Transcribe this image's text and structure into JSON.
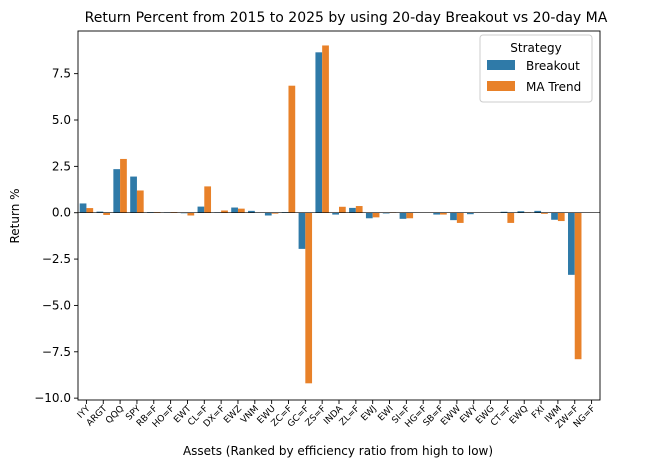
{
  "chart_data": {
    "type": "bar",
    "title": "Return Percent from 2015 to 2025 by using 20-day Breakout vs 20-day MA",
    "xlabel": "Assets (Ranked by efficiency ratio from high to low)",
    "ylabel": "Return %",
    "ylim": [
      -10.1,
      9.8
    ],
    "yticks": [
      -10.0,
      -7.5,
      -5.0,
      -2.5,
      0.0,
      2.5,
      5.0,
      7.5
    ],
    "ytick_labels": [
      "−10.0",
      "−7.5",
      "−5.0",
      "−2.5",
      "0.0",
      "2.5",
      "5.0",
      "7.5"
    ],
    "grid": false,
    "legend": {
      "title": "Strategy",
      "position": "top-right"
    },
    "categories": [
      "IYY",
      "ARGT",
      "QQQ",
      "SPY",
      "RB=F",
      "HO=F",
      "EWT",
      "CL=F",
      "DX=F",
      "EWZ",
      "VNM",
      "EWU",
      "ZC=F",
      "GC=F",
      "ZS=F",
      "INDA",
      "ZL=F",
      "EWJ",
      "EWI",
      "SI=F",
      "HG=F",
      "SB=F",
      "EWW",
      "EWY",
      "EWG",
      "CT=F",
      "EWQ",
      "FXI",
      "IWM",
      "ZW=F",
      "NG=F"
    ],
    "series": [
      {
        "name": "Breakout",
        "color": "#2f7aa8",
        "values": [
          0.5,
          0.06,
          2.35,
          1.95,
          0.03,
          0.02,
          -0.03,
          0.33,
          0.02,
          0.28,
          0.1,
          -0.15,
          0.03,
          -1.95,
          8.65,
          -0.1,
          0.26,
          -0.3,
          -0.04,
          -0.33,
          0.0,
          -0.1,
          -0.4,
          -0.08,
          0.0,
          0.05,
          0.08,
          0.1,
          -0.38,
          -3.35,
          0.0
        ]
      },
      {
        "name": "MA Trend",
        "color": "#e88129",
        "values": [
          0.25,
          -0.12,
          2.9,
          1.2,
          0.03,
          0.03,
          -0.15,
          1.42,
          0.12,
          0.22,
          0.0,
          -0.05,
          6.85,
          -9.2,
          9.02,
          0.32,
          0.36,
          -0.25,
          0.02,
          -0.3,
          0.0,
          -0.1,
          -0.55,
          0.0,
          0.0,
          -0.55,
          0.02,
          -0.06,
          -0.45,
          -7.9,
          0.0
        ]
      }
    ]
  }
}
